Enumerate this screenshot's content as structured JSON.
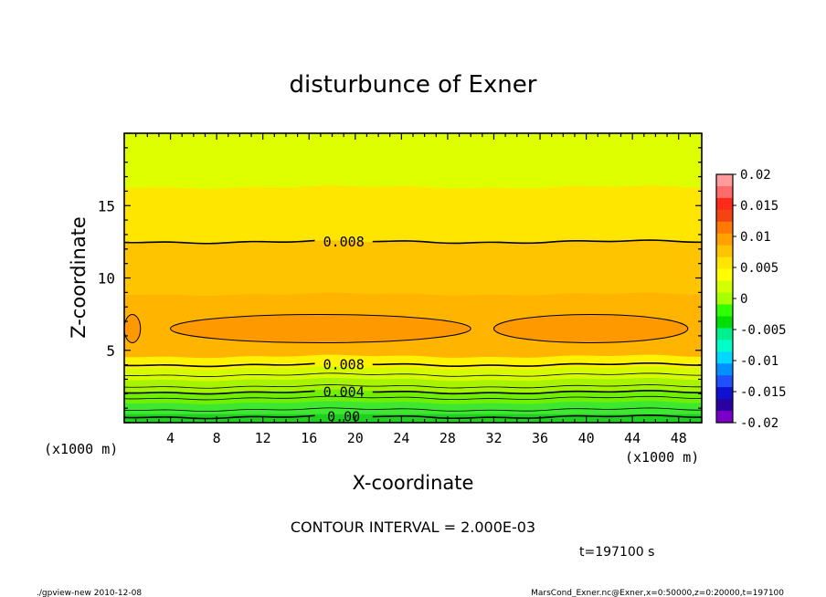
{
  "chart_data": {
    "type": "heatmap",
    "title": "disturbunce of Exner",
    "xlabel": "X-coordinate",
    "ylabel": "Z-coordinate",
    "x_unit": "(x1000 m)",
    "x_unit_right": "(x1000 m)",
    "xlim": [
      0,
      50
    ],
    "ylim": [
      0,
      20
    ],
    "x_ticks": [
      4,
      8,
      12,
      16,
      20,
      24,
      28,
      32,
      36,
      40,
      44,
      48
    ],
    "y_ticks": [
      5,
      10,
      15
    ],
    "color_scale": {
      "min": -0.02,
      "max": 0.02,
      "labels": [
        "0.02",
        "0.015",
        "0.01",
        "0.005",
        "0",
        "-0.005",
        "-0.01",
        "-0.015",
        "-0.02"
      ],
      "colors": [
        "#ff9b9b",
        "#ff6a6a",
        "#ff2a18",
        "#f44412",
        "#ff7a00",
        "#ffa200",
        "#ffc400",
        "#ffe600",
        "#ffff00",
        "#d4ff00",
        "#a8ff00",
        "#30ff00",
        "#00e000",
        "#00f090",
        "#00ffc8",
        "#00d8ff",
        "#0090ff",
        "#2050ff",
        "#1010d0",
        "#2a00a0",
        "#7a00c8"
      ]
    },
    "bands": [
      {
        "z_from": 0.0,
        "z_to": 0.6,
        "color": "#20d020"
      },
      {
        "z_from": 0.6,
        "z_to": 1.4,
        "color": "#3ee830"
      },
      {
        "z_from": 1.4,
        "z_to": 2.2,
        "color": "#70f000"
      },
      {
        "z_from": 2.2,
        "z_to": 3.0,
        "color": "#a8f400"
      },
      {
        "z_from": 3.0,
        "z_to": 3.8,
        "color": "#d6fa00"
      },
      {
        "z_from": 3.8,
        "z_to": 4.6,
        "color": "#fff200"
      },
      {
        "z_from": 4.6,
        "z_to": 8.9,
        "color": "#ffb400"
      },
      {
        "z_from": 8.9,
        "z_to": 12.5,
        "color": "#ffc400"
      },
      {
        "z_from": 12.5,
        "z_to": 16.3,
        "color": "#ffe600"
      },
      {
        "z_from": 16.3,
        "z_to": 20.0,
        "color": "#ddff00"
      }
    ],
    "contours": [
      {
        "z": 12.5,
        "label": "0.008"
      },
      {
        "z": 4.0,
        "label": "0.008"
      },
      {
        "z": 2.1,
        "label": "0.004"
      },
      {
        "z": 0.4,
        "label": "0.00"
      }
    ],
    "contour_interval_text": "CONTOUR INTERVAL = 2.000E-03",
    "time_text": "t=197100 s"
  },
  "footer": {
    "left": "./gpview-new  2010-12-08",
    "right": "MarsCond_Exner.nc@Exner,x=0:50000,z=0:20000,t=197100"
  }
}
